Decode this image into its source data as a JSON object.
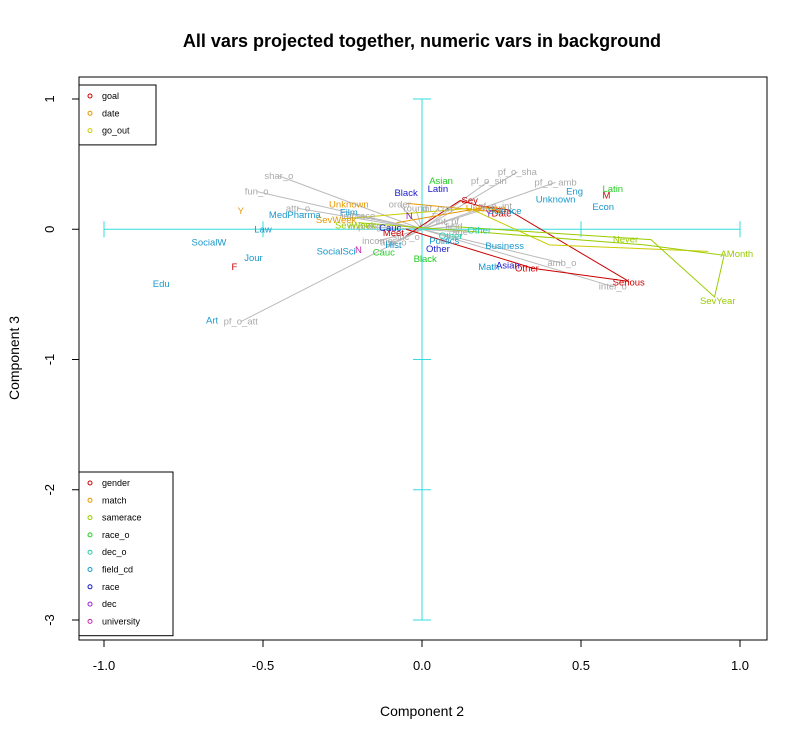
{
  "chart_data": {
    "type": "scatter",
    "title": "All vars projected together, numeric vars in background",
    "xlabel": "Component 2",
    "ylabel": "Component 3",
    "xlim": [
      -1.0,
      1.0
    ],
    "ylim": [
      -3.0,
      1.0
    ],
    "xticks": [
      -1.0,
      -0.5,
      0.0,
      0.5,
      1.0
    ],
    "xtick_labels": [
      "-1.0",
      "-0.5",
      "0.0",
      "0.5",
      "1.0"
    ],
    "yticks": [
      1,
      0,
      -1,
      -2,
      -3
    ],
    "ytick_labels": [
      "1",
      "0",
      "-1",
      "-2",
      "-3"
    ],
    "grid": false,
    "reference_cross": {
      "color": "#33dddd",
      "h": {
        "x": [
          -1.0,
          1.0
        ],
        "y": 0,
        "ticks": [
          -1.0,
          -0.5,
          0.5,
          1.0
        ]
      },
      "v": {
        "x": 0,
        "y": [
          -3.0,
          1.0
        ],
        "ticks": [
          1,
          -1,
          -2,
          -3
        ]
      }
    },
    "legend_top": {
      "placement": "top-left",
      "entries": [
        {
          "label": "goal",
          "color": "#cc0000"
        },
        {
          "label": "date",
          "color": "#e69900"
        },
        {
          "label": "go_out",
          "color": "#cccc00"
        }
      ]
    },
    "legend_bottom": {
      "placement": "bottom-left",
      "entries": [
        {
          "label": "gender",
          "color": "#cc0000"
        },
        {
          "label": "match",
          "color": "#e69900"
        },
        {
          "label": "samerace",
          "color": "#99cc00"
        },
        {
          "label": "race_o",
          "color": "#22cc22"
        },
        {
          "label": "dec_o",
          "color": "#22ccaa"
        },
        {
          "label": "field_cd",
          "color": "#1a99cc"
        },
        {
          "label": "race",
          "color": "#1a1acc"
        },
        {
          "label": "dec",
          "color": "#9922cc"
        },
        {
          "label": "university",
          "color": "#cc22aa"
        }
      ]
    },
    "numeric_vectors": {
      "color": "#bbbbbb",
      "items": [
        {
          "label": "shar_o",
          "x": -0.45,
          "y": 0.41
        },
        {
          "label": "fun_o",
          "x": -0.52,
          "y": 0.29
        },
        {
          "label": "attr_o",
          "x": -0.39,
          "y": 0.16
        },
        {
          "label": "order",
          "x": -0.07,
          "y": 0.19
        },
        {
          "label": "round",
          "x": -0.02,
          "y": 0.16
        },
        {
          "label": "int_corr",
          "x": 0.05,
          "y": 0.16
        },
        {
          "label": "pf_o_sha",
          "x": 0.3,
          "y": 0.44
        },
        {
          "label": "pf_o_sin",
          "x": 0.21,
          "y": 0.37
        },
        {
          "label": "pf_o_amb",
          "x": 0.42,
          "y": 0.36
        },
        {
          "label": "pf_o_int",
          "x": 0.23,
          "y": 0.18
        },
        {
          "label": "imprace",
          "x": -0.2,
          "y": 0.1
        },
        {
          "label": "imprelig",
          "x": -0.18,
          "y": 0.02
        },
        {
          "label": "income",
          "x": -0.14,
          "y": -0.09
        },
        {
          "label": "age_o",
          "x": -0.09,
          "y": -0.1
        },
        {
          "label": "sinc_o",
          "x": -0.05,
          "y": -0.06
        },
        {
          "label": "age",
          "x": 0.12,
          "y": -0.02
        },
        {
          "label": "int_pf",
          "x": 0.08,
          "y": 0.06
        },
        {
          "label": "field",
          "x": 0.1,
          "y": 0.02
        },
        {
          "label": "amb_o",
          "x": 0.44,
          "y": -0.26
        },
        {
          "label": "intel_o",
          "x": 0.6,
          "y": -0.44
        },
        {
          "label": "pf_o_att",
          "x": -0.57,
          "y": -0.71
        }
      ]
    },
    "factor_lines": [
      {
        "name": "goal",
        "color": "#cc0000",
        "points": [
          [
            -0.05,
            -0.05
          ],
          [
            0.12,
            0.22
          ],
          [
            0.18,
            0.18
          ],
          [
            0.27,
            0.15
          ],
          [
            0.65,
            -0.4
          ],
          [
            0.35,
            -0.3
          ],
          [
            -0.05,
            0.0
          ]
        ]
      },
      {
        "name": "date",
        "color": "#e69900",
        "points": [
          [
            -0.08,
            0.05
          ],
          [
            0.2,
            0.17
          ],
          [
            0.25,
            0.13
          ],
          [
            -0.05,
            0.2
          ]
        ]
      },
      {
        "name": "go_out",
        "color": "#cccc00",
        "points": [
          [
            -0.25,
            0.08
          ],
          [
            0.15,
            0.16
          ],
          [
            0.4,
            -0.12
          ],
          [
            0.9,
            -0.17
          ]
        ]
      },
      {
        "name": "samerace",
        "color": "#99cc00",
        "points": [
          [
            -0.2,
            0.05
          ],
          [
            0.7,
            -0.12
          ],
          [
            0.95,
            -0.2
          ],
          [
            0.92,
            -0.52
          ],
          [
            0.72,
            -0.08
          ],
          [
            0.1,
            0.02
          ]
        ]
      }
    ],
    "factor_labels": [
      {
        "label": "Y",
        "var": "date",
        "x": -0.57,
        "y": 0.14,
        "color": "#e69900"
      },
      {
        "label": "Unknown",
        "var": "date",
        "x": -0.23,
        "y": 0.19,
        "color": "#e69900"
      },
      {
        "label": "SevWeek",
        "var": "date",
        "x": -0.27,
        "y": 0.07,
        "color": "#e69900"
      },
      {
        "label": "Unknown",
        "var": "go_out",
        "x": 0.2,
        "y": 0.16,
        "color": "#e69900"
      },
      {
        "label": "M",
        "var": "gender",
        "x": 0.58,
        "y": 0.26,
        "color": "#cc0000"
      },
      {
        "label": "F",
        "var": "gender",
        "x": -0.59,
        "y": -0.29,
        "color": "#cc0000"
      },
      {
        "label": "Sey",
        "var": "goal",
        "x": 0.15,
        "y": 0.22,
        "color": "#cc0000"
      },
      {
        "label": "Date",
        "var": "goal",
        "x": 0.25,
        "y": 0.12,
        "color": "#cc0000"
      },
      {
        "label": "Meet",
        "var": "goal",
        "x": -0.09,
        "y": -0.03,
        "color": "#cc0000"
      },
      {
        "label": "Serious",
        "var": "goal",
        "x": 0.65,
        "y": -0.41,
        "color": "#cc0000"
      },
      {
        "label": "Other",
        "var": "goal",
        "x": 0.33,
        "y": -0.3,
        "color": "#cc0000"
      },
      {
        "label": "Never",
        "var": "go_out",
        "x": 0.64,
        "y": -0.08,
        "color": "#99cc00"
      },
      {
        "label": "AMonth",
        "var": "go_out",
        "x": 0.99,
        "y": -0.19,
        "color": "#99cc00"
      },
      {
        "label": "SevYear",
        "var": "go_out",
        "x": 0.93,
        "y": -0.55,
        "color": "#99cc00"
      },
      {
        "label": "SevWeek",
        "var": "samerace",
        "x": -0.21,
        "y": 0.03,
        "color": "#99cc00"
      },
      {
        "label": "Asian",
        "var": "race_o",
        "x": 0.06,
        "y": 0.37,
        "color": "#22cc22"
      },
      {
        "label": "Latin",
        "var": "race_o",
        "x": 0.6,
        "y": 0.31,
        "color": "#22cc22"
      },
      {
        "label": "Black",
        "var": "race_o",
        "x": 0.01,
        "y": -0.23,
        "color": "#22cc22"
      },
      {
        "label": "Cauc",
        "var": "race_o",
        "x": -0.12,
        "y": -0.18,
        "color": "#22cc22"
      },
      {
        "label": "Other",
        "var": "dec_o",
        "x": 0.18,
        "y": -0.01,
        "color": "#22ccaa"
      },
      {
        "label": "Eng",
        "var": "field_cd",
        "x": 0.48,
        "y": 0.29,
        "color": "#1a99cc"
      },
      {
        "label": "Unknown",
        "var": "field_cd",
        "x": 0.42,
        "y": 0.23,
        "color": "#1a99cc"
      },
      {
        "label": "Econ",
        "var": "field_cd",
        "x": 0.57,
        "y": 0.17,
        "color": "#1a99cc"
      },
      {
        "label": "Science",
        "var": "field_cd",
        "x": 0.26,
        "y": 0.14,
        "color": "#1a99cc"
      },
      {
        "label": "MedPharma",
        "var": "field_cd",
        "x": -0.4,
        "y": 0.11,
        "color": "#1a99cc"
      },
      {
        "label": "Law",
        "var": "field_cd",
        "x": -0.5,
        "y": 0.0,
        "color": "#1a99cc"
      },
      {
        "label": "SocialW",
        "var": "field_cd",
        "x": -0.67,
        "y": -0.1,
        "color": "#1a99cc"
      },
      {
        "label": "Jour",
        "var": "field_cd",
        "x": -0.53,
        "y": -0.22,
        "color": "#1a99cc"
      },
      {
        "label": "Edu",
        "var": "field_cd",
        "x": -0.82,
        "y": -0.42,
        "color": "#1a99cc"
      },
      {
        "label": "Art",
        "var": "field_cd",
        "x": -0.66,
        "y": -0.7,
        "color": "#1a99cc"
      },
      {
        "label": "Film",
        "var": "field_cd",
        "x": -0.23,
        "y": 0.13,
        "color": "#1a99cc"
      },
      {
        "label": "SocialSci",
        "var": "field_cd",
        "x": -0.27,
        "y": -0.17,
        "color": "#1a99cc"
      },
      {
        "label": "Hist",
        "var": "field_cd",
        "x": -0.09,
        "y": -0.12,
        "color": "#1a99cc"
      },
      {
        "label": "Math",
        "var": "field_cd",
        "x": 0.21,
        "y": -0.29,
        "color": "#1a99cc"
      },
      {
        "label": "Business",
        "var": "field_cd",
        "x": 0.26,
        "y": -0.13,
        "color": "#1a99cc"
      },
      {
        "label": "Politics",
        "var": "field_cd",
        "x": 0.07,
        "y": -0.09,
        "color": "#1a99cc"
      },
      {
        "label": "Black",
        "var": "race",
        "x": -0.05,
        "y": 0.28,
        "color": "#1a1acc"
      },
      {
        "label": "Latin",
        "var": "race",
        "x": 0.05,
        "y": 0.31,
        "color": "#1a1acc"
      },
      {
        "label": "Asian",
        "var": "race",
        "x": 0.27,
        "y": -0.28,
        "color": "#1a1acc"
      },
      {
        "label": "Cauc",
        "var": "race",
        "x": -0.1,
        "y": 0.01,
        "color": "#1a1acc"
      },
      {
        "label": "Other",
        "var": "race",
        "x": 0.05,
        "y": -0.15,
        "color": "#1a1acc"
      },
      {
        "label": "N",
        "var": "dec",
        "x": -0.04,
        "y": 0.1,
        "color": "#9922cc"
      },
      {
        "label": "Y",
        "var": "dec",
        "x": 0.21,
        "y": 0.12,
        "color": "#9922cc"
      },
      {
        "label": "Other",
        "var": "dec_o",
        "x": 0.09,
        "y": -0.05,
        "color": "#22ccaa"
      },
      {
        "label": "N",
        "var": "university",
        "x": -0.2,
        "y": -0.16,
        "color": "#cc22aa"
      }
    ]
  }
}
